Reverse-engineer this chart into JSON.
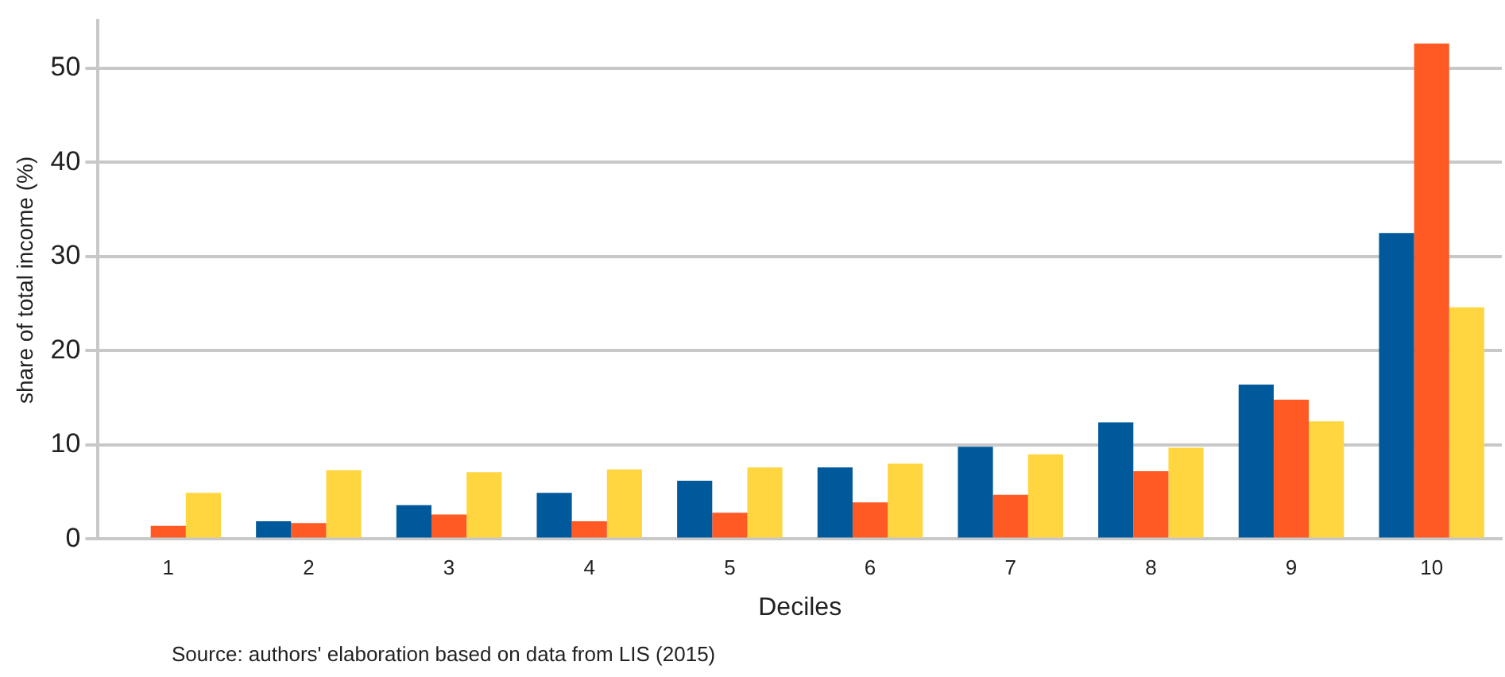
{
  "chart_data": {
    "type": "bar",
    "xlabel": "Deciles",
    "ylabel": "share of total income (%)",
    "categories": [
      "1",
      "2",
      "3",
      "4",
      "5",
      "6",
      "7",
      "8",
      "9",
      "10"
    ],
    "series": [
      {
        "color": "#00599b",
        "values": [
          0,
          1.9,
          3.6,
          4.9,
          6.2,
          7.6,
          9.8,
          12.4,
          16.4,
          32.5
        ]
      },
      {
        "color": "#ff5a24",
        "values": [
          1.4,
          1.7,
          2.6,
          1.9,
          2.8,
          3.9,
          4.7,
          7.2,
          14.8,
          52.6
        ]
      },
      {
        "color": "#ffd63f",
        "values": [
          4.9,
          7.3,
          7.1,
          7.4,
          7.6,
          8.0,
          9.0,
          9.7,
          12.5,
          24.6
        ]
      }
    ],
    "ylim": [
      0,
      55
    ],
    "yticks": [
      0,
      10,
      20,
      30,
      40,
      50
    ],
    "grid": "y",
    "legend": false,
    "annotations": [
      "Source: authors' elaboration based on data from LIS (2015)"
    ]
  }
}
